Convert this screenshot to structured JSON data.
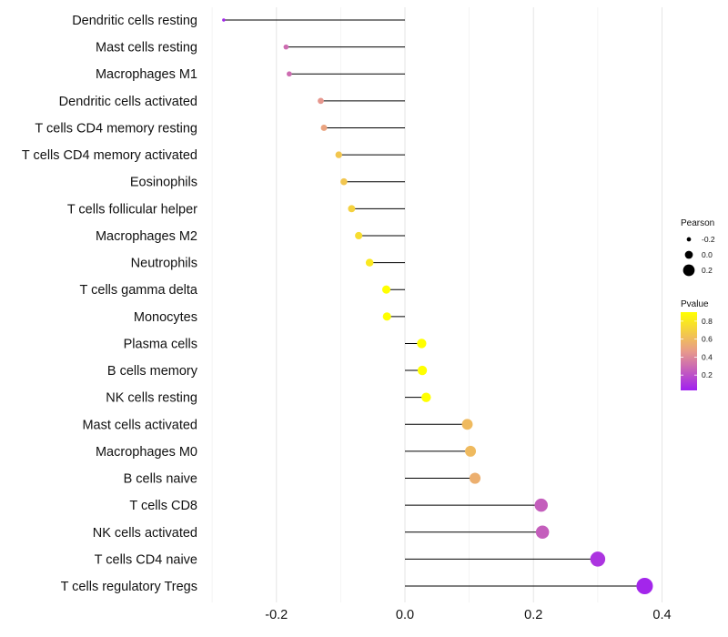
{
  "chart_data": {
    "type": "lollipop",
    "title": "",
    "xlabel": "",
    "ylabel": "",
    "xlim": [
      -0.3,
      0.4
    ],
    "xticks": [
      -0.2,
      0.0,
      0.2,
      0.4
    ],
    "xtick_labels": [
      "-0.2",
      "0.0",
      "0.2",
      "0.4"
    ],
    "grid": true,
    "categories": [
      "Dendritic cells resting",
      "Mast cells resting",
      "Macrophages M1",
      "Dendritic cells activated",
      "T cells CD4 memory resting",
      "T cells CD4 memory activated",
      "Eosinophils",
      "T cells follicular helper",
      "Macrophages M2",
      "Neutrophils",
      "T cells gamma delta",
      "Monocytes",
      "Plasma cells",
      "B cells memory",
      "NK cells resting",
      "Mast cells activated",
      "Macrophages M0",
      "B cells naive",
      "T cells CD8",
      "NK cells activated",
      "T cells CD4 naive",
      "T cells regulatory  Tregs"
    ],
    "pearson": [
      -0.282,
      -0.185,
      -0.18,
      -0.131,
      -0.126,
      -0.103,
      -0.095,
      -0.083,
      -0.072,
      -0.055,
      -0.029,
      -0.028,
      0.026,
      0.027,
      0.033,
      0.097,
      0.102,
      0.109,
      0.212,
      0.214,
      0.3,
      0.373
    ],
    "pvalue": [
      0.05,
      0.3,
      0.3,
      0.45,
      0.5,
      0.65,
      0.65,
      0.7,
      0.75,
      0.8,
      0.9,
      0.9,
      0.9,
      0.9,
      0.9,
      0.6,
      0.6,
      0.55,
      0.25,
      0.25,
      0.1,
      0.05
    ],
    "legend": {
      "size_title": "Pearson",
      "size_entries": [
        {
          "label": "-0.2",
          "value": -0.2
        },
        {
          "label": "0.0",
          "value": 0.0
        },
        {
          "label": "0.2",
          "value": 0.2
        }
      ],
      "color_title": "Pvalue",
      "color_ticks": [
        {
          "label": "0.8",
          "value": 0.8
        },
        {
          "label": "0.6",
          "value": 0.6
        },
        {
          "label": "0.4",
          "value": 0.4
        },
        {
          "label": "0.2",
          "value": 0.2
        }
      ],
      "color_range": [
        0.03,
        0.9
      ],
      "colors": {
        "low": "#a020f0",
        "mid": "#e89b8a",
        "high": "#ffff00"
      },
      "placement": "right"
    }
  }
}
